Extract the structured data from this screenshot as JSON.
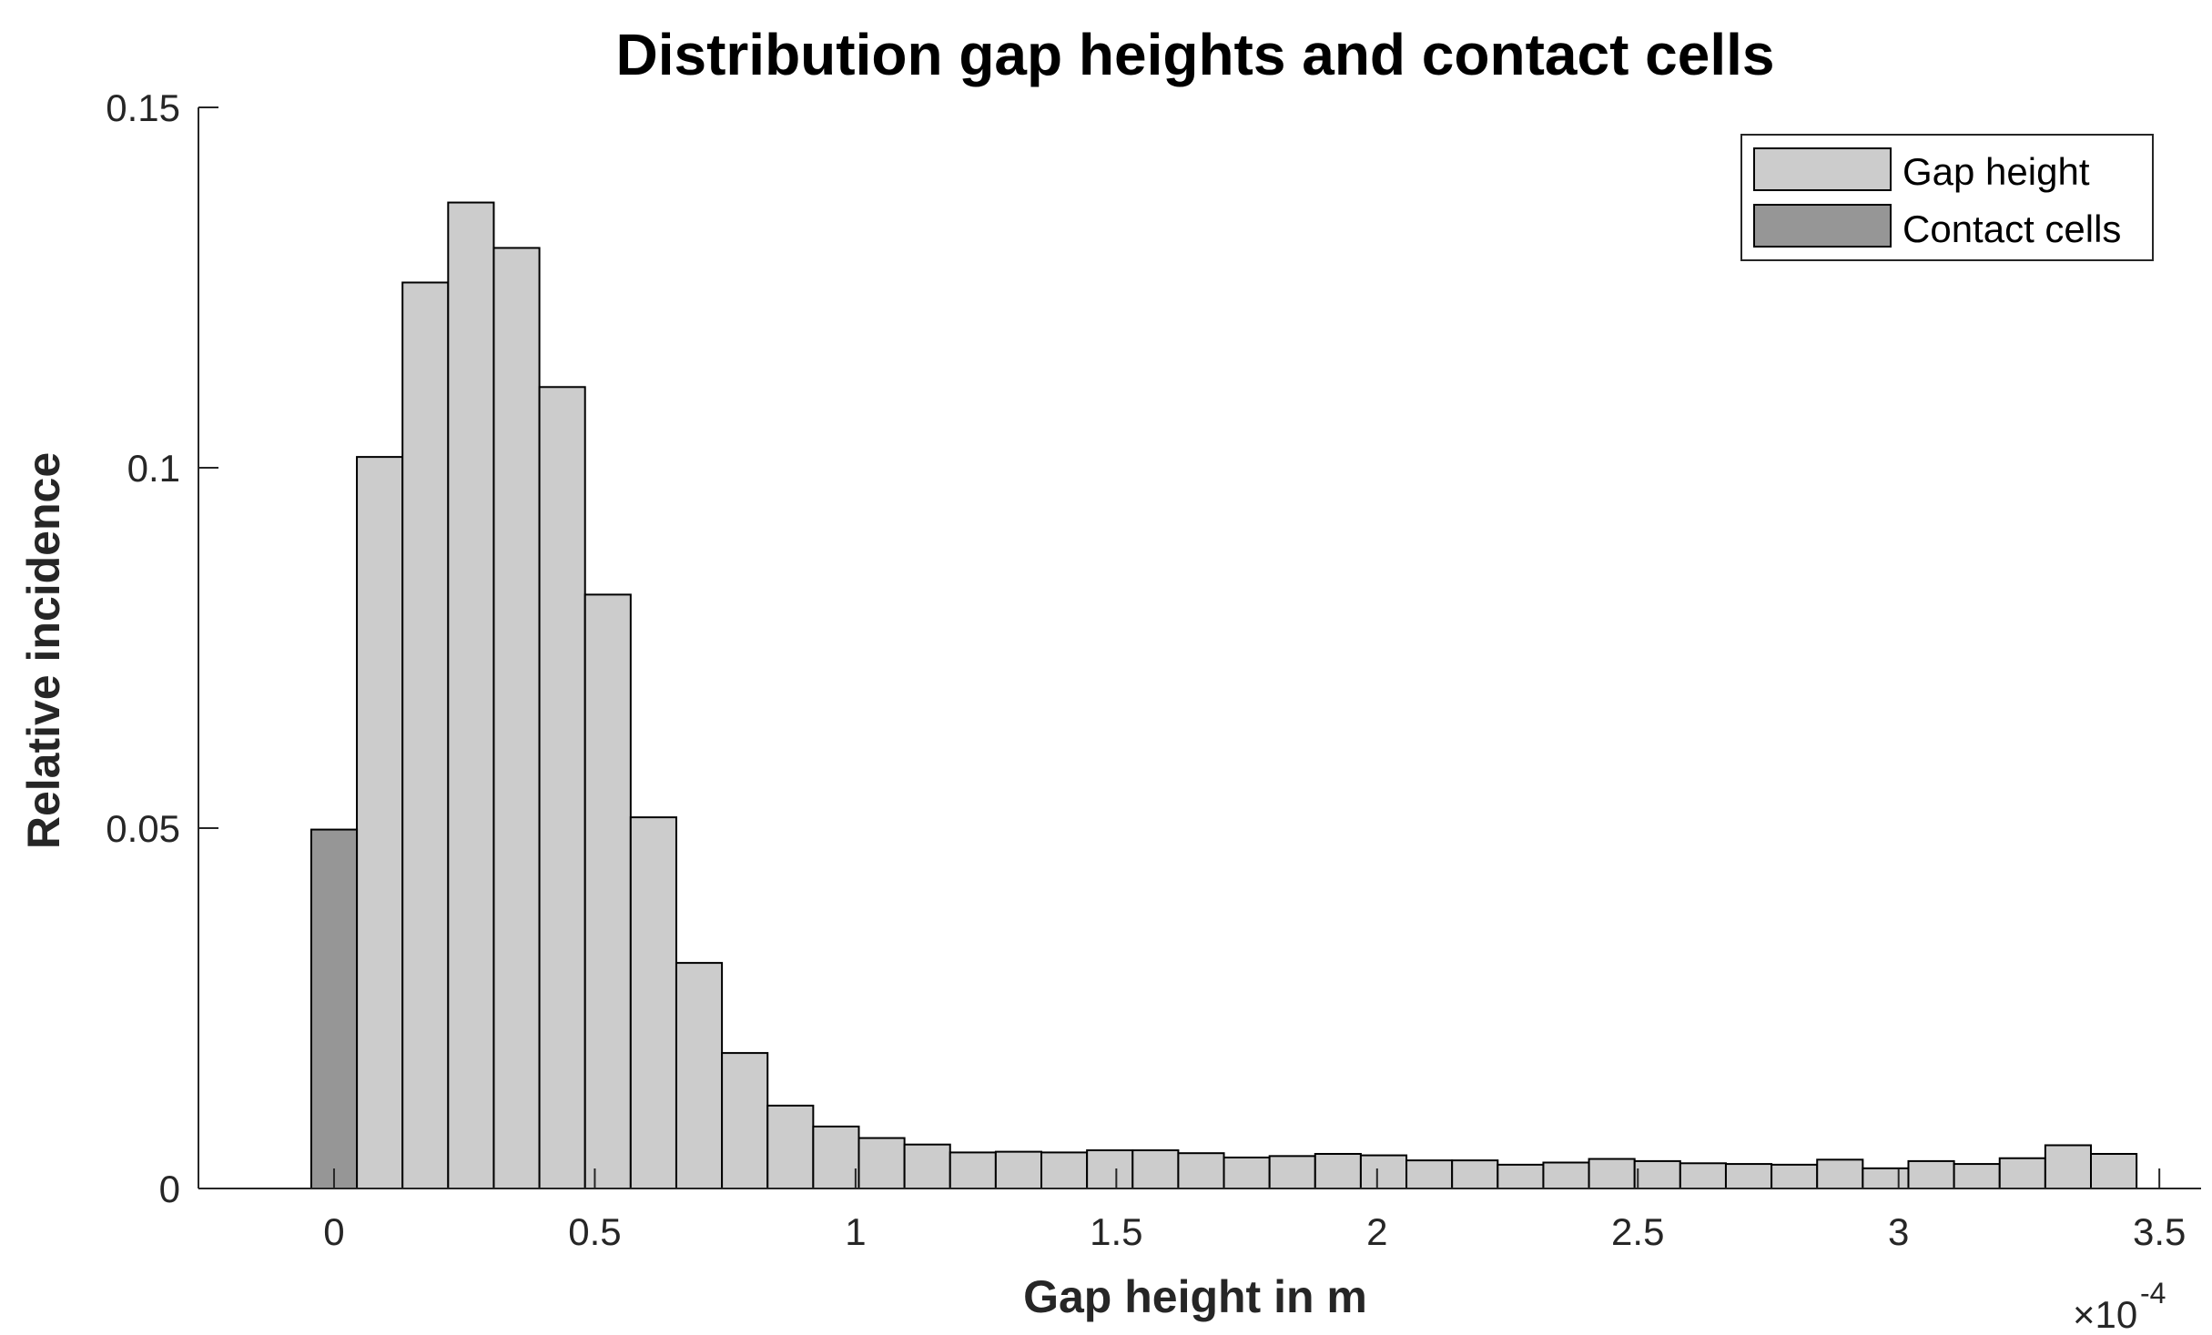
{
  "chart_data": {
    "type": "bar",
    "title": "Distribution gap heights and contact cells",
    "xlabel": "Gap height in m",
    "ylabel": "Relative incidence",
    "x_exponent_label": "×10",
    "x_exponent_power": "-4",
    "xlim": [
      -0.26,
      3.58
    ],
    "ylim": [
      0,
      0.15
    ],
    "x_ticks": [
      0,
      0.5,
      1,
      1.5,
      2,
      2.5,
      3,
      3.5
    ],
    "x_tick_labels": [
      "0",
      "0.5",
      "1",
      "1.5",
      "2",
      "2.5",
      "3",
      "3.5"
    ],
    "y_ticks": [
      0,
      0.05,
      0.1,
      0.15
    ],
    "y_tick_labels": [
      "0",
      "0.05",
      "0.1",
      "0.15"
    ],
    "bin_width": 0.0875,
    "legend": {
      "location": "top-right",
      "entries": [
        "Gap height",
        "Contact cells"
      ]
    },
    "series": [
      {
        "name": "Gap height",
        "color": "#cccccc",
        "bin_starts": [
          0.0438,
          0.1313,
          0.2188,
          0.3063,
          0.3938,
          0.4813,
          0.5688,
          0.6563,
          0.7438,
          0.8313,
          0.9188,
          1.0063,
          1.0938,
          1.1813,
          1.2688,
          1.3563,
          1.4438,
          1.5313,
          1.6188,
          1.7063,
          1.7938,
          1.8813,
          1.9688,
          2.0563,
          2.1438,
          2.2313,
          2.3188,
          2.4063,
          2.4938,
          2.5813,
          2.6688,
          2.7563,
          2.8438,
          2.9313,
          3.0188,
          3.1063,
          3.1938,
          3.2813,
          3.3688
        ],
        "values": [
          0.1015,
          0.1257,
          0.1368,
          0.1305,
          0.1112,
          0.0824,
          0.0515,
          0.0313,
          0.0188,
          0.0115,
          0.0086,
          0.007,
          0.0061,
          0.005,
          0.0051,
          0.005,
          0.0053,
          0.0053,
          0.0049,
          0.0043,
          0.0045,
          0.0048,
          0.0046,
          0.0039,
          0.0039,
          0.0033,
          0.0036,
          0.0041,
          0.0038,
          0.0035,
          0.0034,
          0.0033,
          0.004,
          0.0028,
          0.0038,
          0.0034,
          0.0042,
          0.006,
          0.0048
        ]
      },
      {
        "name": "Contact cells",
        "color": "#969696",
        "bin_starts": [
          -0.0437
        ],
        "values": [
          0.0498
        ]
      }
    ]
  }
}
